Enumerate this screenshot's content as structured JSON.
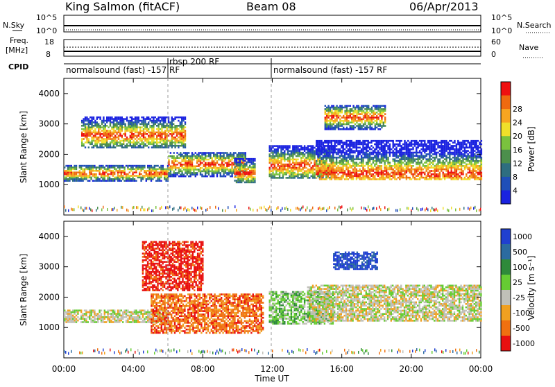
{
  "header": {
    "station": "King Salmon (fitACF)",
    "beam": "Beam 08",
    "date": "06/Apr/2013"
  },
  "strips": {
    "nsky_label": "N.Sky",
    "nsky_ticks": [
      "10^5",
      "10^0"
    ],
    "nsearch_label": "N.Search",
    "nsearch_ticks": [
      "10^5",
      "10^0"
    ],
    "freq_label_1": "Freq.",
    "freq_label_2": "[MHz]",
    "freq_ticks": [
      "18",
      "8"
    ],
    "nave_label": "Nave",
    "nave_ticks": [
      "60",
      "0"
    ],
    "cpid_label": "CPID",
    "cpid_modes": [
      {
        "label": "normalsound (fast) -157 RF",
        "start_h": 0
      },
      {
        "label": "rbsp 200 RF",
        "start_h": 6
      },
      {
        "label": "normalsound (fast) -157 RF",
        "start_h": 12
      }
    ]
  },
  "chart_data": [
    {
      "type": "heatmap",
      "name": "power",
      "ylabel": "Slant Range [km]",
      "yticks": [
        "1000",
        "2000",
        "3000",
        "4000"
      ],
      "ylim": [
        0,
        4500
      ],
      "xlim_hours": [
        0,
        24
      ],
      "colorbar_label": "Power [dB]",
      "colorbar_ticks": [
        "4",
        "8",
        "12",
        "16",
        "20",
        "24",
        "28"
      ],
      "colors": [
        "#1a22e0",
        "#1f4fb8",
        "#2e6e80",
        "#4c8f4c",
        "#7ac23e",
        "#f0e02a",
        "#f7a520",
        "#ee6a10",
        "#ee1010"
      ],
      "bands": [
        {
          "x": [
            0.0,
            6.0
          ],
          "y": [
            1100,
            1650
          ],
          "core_y": 1350
        },
        {
          "x": [
            6.0,
            10.5
          ],
          "y": [
            1250,
            2050
          ],
          "core_y": 1650
        },
        {
          "x": [
            9.8,
            11.0
          ],
          "y": [
            1050,
            1850
          ],
          "core_y": 1350
        },
        {
          "x": [
            11.8,
            15.5
          ],
          "y": [
            1200,
            2300
          ],
          "core_y": 1600
        },
        {
          "x": [
            14.5,
            24.0
          ],
          "y": [
            1150,
            2450
          ],
          "core_y": 1350
        },
        {
          "x": [
            1.0,
            7.0
          ],
          "y": [
            2200,
            3200
          ],
          "core_y": 2600
        },
        {
          "x": [
            15.0,
            18.5
          ],
          "y": [
            2800,
            3600
          ],
          "core_y": 3200
        }
      ]
    },
    {
      "type": "heatmap",
      "name": "velocity",
      "ylabel": "Slant Range [km]",
      "yticks": [
        "1000",
        "2000",
        "3000",
        "4000"
      ],
      "ylim": [
        0,
        4500
      ],
      "xlim_hours": [
        0,
        24
      ],
      "xticks": [
        "00:00",
        "04:00",
        "08:00",
        "12:00",
        "16:00",
        "20:00",
        "00:00"
      ],
      "xlabel": "Time UT",
      "colorbar_label": "Velocity [m s⁻¹]",
      "colorbar_ticks": [
        "1000",
        "500",
        "100",
        "25",
        "-25",
        "-100",
        "-500",
        "-1000"
      ],
      "colors": [
        "#2040d0",
        "#2b6ba0",
        "#2e8a3a",
        "#66cc33",
        "#c0c0b8",
        "#f0a020",
        "#f07010",
        "#e81010"
      ],
      "bands": [
        {
          "x": [
            0.0,
            6.0
          ],
          "y": [
            1150,
            1550
          ],
          "tone": "gray"
        },
        {
          "x": [
            5.0,
            11.5
          ],
          "y": [
            800,
            2100
          ],
          "tone": "orange"
        },
        {
          "x": [
            11.8,
            15.5
          ],
          "y": [
            1100,
            2200
          ],
          "tone": "green"
        },
        {
          "x": [
            14.0,
            24.0
          ],
          "y": [
            1200,
            2400
          ],
          "tone": "gray"
        },
        {
          "x": [
            4.5,
            8.0
          ],
          "y": [
            2200,
            3800
          ],
          "tone": "red"
        },
        {
          "x": [
            15.5,
            18.0
          ],
          "y": [
            2900,
            3500
          ],
          "tone": "blue"
        }
      ]
    }
  ]
}
